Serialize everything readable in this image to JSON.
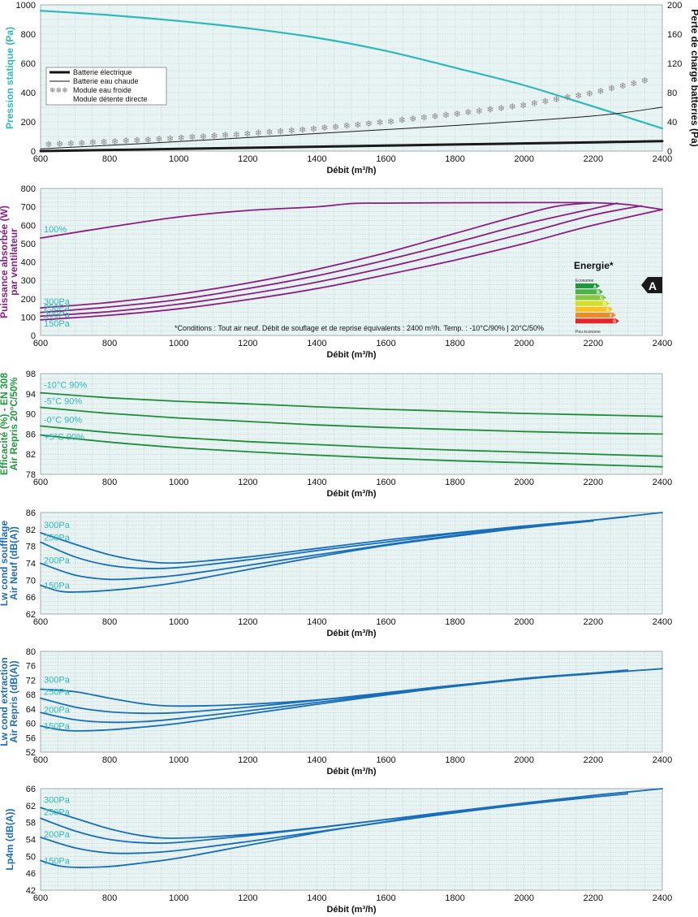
{
  "chart_data": [
    {
      "type": "line",
      "ylabel": "Pression statique (Pa)",
      "ylabel_color": "#2fb8b8",
      "y2label": "Perte de charge batteries (Pa)",
      "xlabel": "Débit (m³/h)",
      "xlim": [
        600,
        2400
      ],
      "ylim": [
        0,
        1000
      ],
      "y2lim": [
        0,
        200
      ],
      "xticks": [
        "600",
        "800",
        "1000",
        "1200",
        "1400",
        "1600",
        "1800",
        "2000",
        "2200",
        "2400"
      ],
      "yticks": [
        "0",
        "200",
        "400",
        "600",
        "800",
        "1000"
      ],
      "y2ticks": [
        "0",
        "40",
        "80",
        "120",
        "160",
        "200"
      ],
      "grid": true,
      "legend": {
        "position": "left",
        "entries": [
          "Batterie électrique",
          "Batterie eau chaude",
          "Module eau froide",
          "Module détente directe"
        ]
      },
      "series": [
        {
          "name": "",
          "axis": "left",
          "color": "#2fb8b8",
          "width": 2.2,
          "x": [
            600,
            800,
            1000,
            1200,
            1400,
            1600,
            1800,
            2000,
            2200,
            2400
          ],
          "y": [
            960,
            930,
            890,
            840,
            775,
            685,
            570,
            450,
            305,
            155
          ]
        },
        {
          "name": "Batterie électrique",
          "axis": "right",
          "color": "#1a1a1a",
          "width": 3,
          "x": [
            600,
            1000,
            1400,
            1800,
            2200,
            2400
          ],
          "y": [
            0,
            3,
            6,
            9,
            12,
            13.5
          ]
        },
        {
          "name": "Batterie eau chaude",
          "axis": "right",
          "color": "#1a1a1a",
          "width": 1,
          "x": [
            600,
            1000,
            1400,
            1800,
            2200,
            2400
          ],
          "y": [
            3,
            13,
            24,
            35,
            48,
            60
          ]
        },
        {
          "name": "Module eau froide",
          "axis": "right",
          "color": "#888888",
          "style": "snowflake",
          "x": [
            600,
            800,
            1000,
            1200,
            1400,
            1600,
            1800,
            2000,
            2200,
            2400
          ],
          "y": [
            9,
            13,
            18,
            24,
            31,
            40,
            51,
            63,
            80,
            102
          ]
        }
      ]
    },
    {
      "type": "line",
      "ylabel": "Puissance absorbée (W) par ventilateur",
      "ylabel_color": "#8a1e82",
      "xlabel": "Débit (m³/h)",
      "xlim": [
        600,
        2400
      ],
      "ylim": [
        0,
        800
      ],
      "xticks": [
        "600",
        "800",
        "1000",
        "1200",
        "1400",
        "1600",
        "1800",
        "2000",
        "2200",
        "2400"
      ],
      "yticks": [
        "0",
        "100",
        "200",
        "300",
        "400",
        "500",
        "600",
        "700",
        "800"
      ],
      "grid": true,
      "annotation": "*Conditions : Tout air neuf. Débit de souflage et de reprise équivalents : 2400 m³/h. Temp. : -10°C/90% | 20°C/50%",
      "energy": {
        "title": "Energie*",
        "top": "Economie",
        "bottom": "Peu économe",
        "classes": [
          "A",
          "B",
          "C",
          "D",
          "E",
          "F",
          "G"
        ],
        "rating": "A"
      },
      "series": [
        {
          "name": "100%",
          "color": "#8a1e82",
          "x": [
            600,
            800,
            1000,
            1200,
            1400,
            1500,
            1600,
            1800,
            2000,
            2200,
            2300,
            2400
          ],
          "y": [
            530,
            590,
            645,
            680,
            700,
            718,
            720,
            722,
            723,
            722,
            712,
            685
          ]
        },
        {
          "name": "300Pa",
          "color": "#8a1e82",
          "x": [
            600,
            800,
            1000,
            1200,
            1400,
            1600,
            1800,
            2000,
            2100,
            2200
          ],
          "y": [
            150,
            180,
            225,
            285,
            360,
            450,
            555,
            660,
            705,
            722
          ]
        },
        {
          "name": "250Pa",
          "color": "#8a1e82",
          "x": [
            600,
            800,
            1000,
            1200,
            1400,
            1600,
            1800,
            2000,
            2200,
            2270
          ],
          "y": [
            125,
            155,
            195,
            255,
            325,
            410,
            505,
            605,
            690,
            720
          ]
        },
        {
          "name": "200Pa",
          "color": "#8a1e82",
          "x": [
            600,
            800,
            1000,
            1200,
            1400,
            1600,
            1800,
            2000,
            2200,
            2340
          ],
          "y": [
            105,
            130,
            170,
            225,
            290,
            370,
            460,
            555,
            655,
            705
          ]
        },
        {
          "name": "150Pa",
          "color": "#8a1e82",
          "x": [
            600,
            800,
            1000,
            1200,
            1400,
            1600,
            1800,
            2000,
            2200,
            2400
          ],
          "y": [
            85,
            110,
            145,
            195,
            255,
            330,
            410,
            500,
            600,
            685
          ]
        }
      ]
    },
    {
      "type": "line",
      "ylabel": "Efficacité (%) - EN 308 Air Repris 20°C/50%",
      "ylabel_color": "#1e9a3c",
      "xlabel": "Débit (m³/h)",
      "xlim": [
        600,
        2400
      ],
      "ylim": [
        78,
        98
      ],
      "xticks": [
        "600",
        "800",
        "1000",
        "1200",
        "1400",
        "1600",
        "1800",
        "2000",
        "2200",
        "2400"
      ],
      "yticks": [
        "78",
        "82",
        "86",
        "90",
        "94",
        "98"
      ],
      "grid": true,
      "series": [
        {
          "name": "-10°C 90%",
          "color": "#1e8c3c",
          "x": [
            600,
            800,
            1000,
            1200,
            1400,
            1600,
            1800,
            2000,
            2200,
            2400
          ],
          "y": [
            94.2,
            93.2,
            92.5,
            92.0,
            91.4,
            90.9,
            90.5,
            90.1,
            89.8,
            89.5
          ]
        },
        {
          "name": "-5°C 90%",
          "color": "#1e8c3c",
          "x": [
            600,
            800,
            1000,
            1200,
            1400,
            1600,
            1800,
            2000,
            2200,
            2400
          ],
          "y": [
            91.3,
            90.1,
            89.2,
            88.5,
            87.8,
            87.3,
            86.9,
            86.5,
            86.2,
            86.0
          ]
        },
        {
          "name": "-0°C 90%",
          "color": "#1e8c3c",
          "x": [
            600,
            800,
            1000,
            1200,
            1400,
            1600,
            1800,
            2000,
            2200,
            2400
          ],
          "y": [
            87.6,
            86.3,
            85.3,
            84.5,
            83.9,
            83.3,
            82.8,
            82.4,
            82.0,
            81.6
          ]
        },
        {
          "name": "+5°C 90%",
          "color": "#1e8c3c",
          "x": [
            600,
            800,
            1000,
            1200,
            1400,
            1600,
            1800,
            2000,
            2200,
            2400
          ],
          "y": [
            85.8,
            84.4,
            83.3,
            82.5,
            81.8,
            81.2,
            80.7,
            80.3,
            79.9,
            79.5
          ]
        }
      ]
    },
    {
      "type": "line",
      "ylabel": "Lw cond soufflage Air Neuf (dB(A))",
      "ylabel_color": "#1a6eb8",
      "xlabel": "Débit (m³/h)",
      "xlim": [
        600,
        2400
      ],
      "ylim": [
        62,
        86
      ],
      "xticks": [
        "600",
        "800",
        "1000",
        "1200",
        "1400",
        "1600",
        "1800",
        "2000",
        "2200",
        "2400"
      ],
      "yticks": [
        "62",
        "66",
        "70",
        "74",
        "78",
        "82",
        "86"
      ],
      "grid": true,
      "series": [
        {
          "name": "300Pa",
          "color": "#1a6eb8",
          "x": [
            600,
            700,
            800,
            900,
            1000,
            1200,
            1400,
            1600,
            1800,
            2000,
            2200,
            2300
          ],
          "y": [
            81.2,
            78.5,
            76,
            74.5,
            74.1,
            75.5,
            77.5,
            79.5,
            81.2,
            82.8,
            84.2,
            85
          ]
        },
        {
          "name": "250Pa",
          "color": "#1a6eb8",
          "x": [
            600,
            700,
            800,
            900,
            1000,
            1200,
            1400,
            1600,
            1800,
            2000,
            2200
          ],
          "y": [
            79,
            75.5,
            73.5,
            72.8,
            73,
            74.8,
            77,
            79,
            81,
            82.6,
            84
          ]
        },
        {
          "name": "200Pa",
          "color": "#1a6eb8",
          "x": [
            600,
            700,
            800,
            900,
            1000,
            1200,
            1400,
            1600,
            1800,
            2000,
            2200
          ],
          "y": [
            74,
            71.2,
            70.2,
            70.5,
            71.2,
            73.5,
            76,
            78.4,
            80.6,
            82.4,
            84
          ]
        },
        {
          "name": "150Pa",
          "color": "#1a6eb8",
          "x": [
            600,
            650,
            700,
            800,
            900,
            1000,
            1200,
            1400,
            1600,
            1800,
            2000,
            2200,
            2400
          ],
          "y": [
            68.8,
            67.5,
            67.2,
            67.6,
            68.4,
            69.5,
            72.5,
            75.5,
            78.2,
            80.4,
            82.4,
            84.2,
            86
          ]
        }
      ]
    },
    {
      "type": "line",
      "ylabel": "Lw cond extraction Air Repris (dB(A))",
      "ylabel_color": "#1a6eb8",
      "xlabel": "Débit (m³/h)",
      "xlim": [
        600,
        2400
      ],
      "ylim": [
        52,
        80
      ],
      "xticks": [
        "600",
        "800",
        "1000",
        "1200",
        "1400",
        "1600",
        "1800",
        "2000",
        "2200",
        "2400"
      ],
      "yticks": [
        "52",
        "56",
        "60",
        "64",
        "68",
        "72",
        "76",
        "80"
      ],
      "grid": true,
      "series": [
        {
          "name": "300Pa",
          "color": "#1a6eb8",
          "x": [
            600,
            700,
            800,
            900,
            1000,
            1200,
            1400,
            1600,
            1800,
            2000,
            2200,
            2300
          ],
          "y": [
            69.5,
            68.8,
            67,
            65.4,
            64.8,
            65.3,
            66.5,
            68.3,
            70.5,
            72.5,
            74,
            74.8
          ]
        },
        {
          "name": "250Pa",
          "color": "#1a6eb8",
          "x": [
            600,
            700,
            800,
            900,
            1000,
            1200,
            1400,
            1600,
            1800,
            2000,
            2200
          ],
          "y": [
            67,
            64.5,
            63.2,
            62.8,
            63,
            64.5,
            66.4,
            68.5,
            70.6,
            72.4,
            74
          ]
        },
        {
          "name": "200Pa",
          "color": "#1a6eb8",
          "x": [
            600,
            700,
            800,
            900,
            1000,
            1200,
            1400,
            1600,
            1800,
            2000,
            2200
          ],
          "y": [
            63,
            61,
            60.3,
            60.5,
            61.3,
            63.5,
            65.8,
            68.1,
            70.3,
            72.3,
            74
          ]
        },
        {
          "name": "150Pa",
          "color": "#1a6eb8",
          "x": [
            600,
            650,
            700,
            800,
            900,
            1000,
            1200,
            1400,
            1600,
            1800,
            2000,
            2200,
            2400
          ],
          "y": [
            59.3,
            58.3,
            57.9,
            58.2,
            59,
            60,
            62.6,
            65.3,
            67.9,
            70.3,
            72.3,
            73.8,
            75.2
          ]
        }
      ]
    },
    {
      "type": "line",
      "ylabel": "Lp4m (dB(A))",
      "ylabel_color": "#1a6eb8",
      "xlabel": "Débit (m³/h)",
      "xlim": [
        600,
        2400
      ],
      "ylim": [
        42,
        66
      ],
      "xticks": [
        "600",
        "800",
        "1000",
        "1200",
        "1400",
        "1600",
        "1800",
        "2000",
        "2200",
        "2400"
      ],
      "yticks": [
        "42",
        "46",
        "50",
        "54",
        "58",
        "62",
        "66"
      ],
      "grid": true,
      "series": [
        {
          "name": "300Pa",
          "color": "#1a6eb8",
          "x": [
            600,
            700,
            800,
            900,
            1000,
            1200,
            1400,
            1600,
            1800,
            2000,
            2200,
            2300
          ],
          "y": [
            61.5,
            59,
            56.5,
            54.8,
            54.3,
            55.2,
            56.8,
            58.7,
            60.5,
            62.4,
            64,
            64.8
          ]
        },
        {
          "name": "250Pa",
          "color": "#1a6eb8",
          "x": [
            600,
            700,
            800,
            900,
            1000,
            1200,
            1400,
            1600,
            1800,
            2000,
            2200
          ],
          "y": [
            59,
            56,
            54,
            53.2,
            53.3,
            54.9,
            56.7,
            58.7,
            60.7,
            62.5,
            64
          ]
        },
        {
          "name": "200Pa",
          "color": "#1a6eb8",
          "x": [
            600,
            700,
            800,
            900,
            1000,
            1200,
            1400,
            1600,
            1800,
            2000,
            2200
          ],
          "y": [
            54.5,
            52,
            50.8,
            50.8,
            51.4,
            53.5,
            55.8,
            58.1,
            60.3,
            62.3,
            64
          ]
        },
        {
          "name": "150Pa",
          "color": "#1a6eb8",
          "x": [
            600,
            650,
            700,
            800,
            900,
            1000,
            1200,
            1400,
            1600,
            1800,
            2000,
            2200,
            2400
          ],
          "y": [
            49,
            47.8,
            47.4,
            47.6,
            48.5,
            49.6,
            52.6,
            55.6,
            58.2,
            60.6,
            62.6,
            64.4,
            66
          ]
        }
      ]
    }
  ]
}
